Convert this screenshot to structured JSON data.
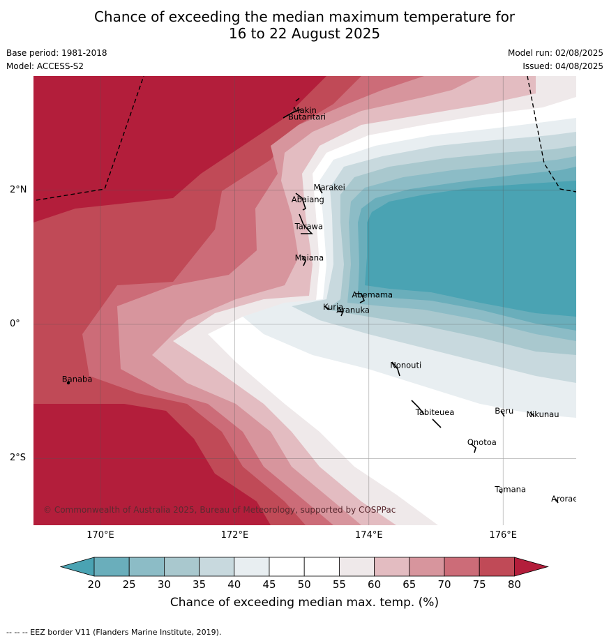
{
  "title": {
    "line1": "Chance of exceeding the median maximum temperature for",
    "line2": "16 to 22 August 2025"
  },
  "meta": {
    "base_period": "Base period: 1981-2018",
    "model": "Model: ACCESS-S2",
    "model_run": "Model run: 02/08/2025",
    "issued": "Issued: 04/08/2025"
  },
  "axes": {
    "lat_ticks": [
      {
        "value": 2,
        "label": "2°N"
      },
      {
        "value": 0,
        "label": "0°"
      },
      {
        "value": -2,
        "label": "2°S"
      }
    ],
    "lon_ticks": [
      {
        "value": 170,
        "label": "170°E"
      },
      {
        "value": 172,
        "label": "172°E"
      },
      {
        "value": 174,
        "label": "174°E"
      },
      {
        "value": 176,
        "label": "176°E"
      }
    ]
  },
  "places": [
    {
      "name": "Makin",
      "lon": 172.97,
      "lat": 3.15
    },
    {
      "name": "Butaritari",
      "lon": 172.9,
      "lat": 3.05
    },
    {
      "name": "Marakei",
      "lon": 173.28,
      "lat": 2.0
    },
    {
      "name": "Abaiang",
      "lon": 172.95,
      "lat": 1.82
    },
    {
      "name": "Tarawa",
      "lon": 173.0,
      "lat": 1.42
    },
    {
      "name": "Maiana",
      "lon": 173.0,
      "lat": 0.95
    },
    {
      "name": "Abemama",
      "lon": 173.85,
      "lat": 0.4
    },
    {
      "name": "Kuria",
      "lon": 173.42,
      "lat": 0.22
    },
    {
      "name": "Aranuka",
      "lon": 173.62,
      "lat": 0.17
    },
    {
      "name": "Nonouti",
      "lon": 174.42,
      "lat": -0.65
    },
    {
      "name": "Banaba",
      "lon": 169.53,
      "lat": -0.86
    },
    {
      "name": "Tabiteuea",
      "lon": 174.8,
      "lat": -1.35
    },
    {
      "name": "Beru",
      "lon": 175.98,
      "lat": -1.33
    },
    {
      "name": "Nikunau",
      "lon": 176.45,
      "lat": -1.38
    },
    {
      "name": "Onotoa",
      "lon": 175.57,
      "lat": -1.8
    },
    {
      "name": "Tamana",
      "lon": 175.98,
      "lat": -2.5
    },
    {
      "name": "Arorae",
      "lon": 176.82,
      "lat": -2.64
    }
  ],
  "colorbar": {
    "label": "Chance of exceeding median max. temp. (%)",
    "ticks": [
      "20",
      "25",
      "30",
      "35",
      "40",
      "45",
      "50",
      "55",
      "60",
      "65",
      "70",
      "75",
      "80"
    ],
    "colors": [
      "#6aaebb",
      "#8cbcc6",
      "#a9c8ce",
      "#c8d9de",
      "#e8eef1",
      "#ffffff",
      "#ffffff",
      "#efe9ea",
      "#e3bcc1",
      "#d7959d",
      "#cc6c78",
      "#c04a57"
    ],
    "under_color": "#4aa3b3",
    "over_color": "#b31e3b"
  },
  "copyright": "© Commonwealth of Australia 2025, Bureau of Meteorology, supported by COSPPac",
  "footer": "--  --  -- EEZ border V11 (Flanders Marine Institute, 2019)."
}
